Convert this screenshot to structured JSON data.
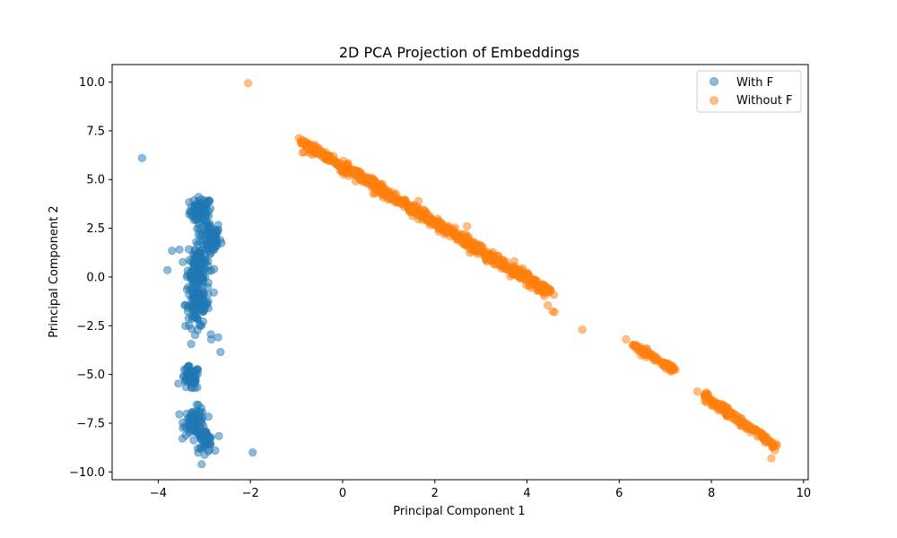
{
  "chart_data": {
    "type": "scatter",
    "title": "2D PCA Projection of Embeddings",
    "xlabel": "Principal Component 1",
    "ylabel": "Principal Component 2",
    "xlim": [
      -5.0,
      10.1
    ],
    "ylim": [
      -10.4,
      10.9
    ],
    "xticks": [
      -4,
      -2,
      0,
      2,
      4,
      6,
      8,
      10
    ],
    "yticks": [
      -10.0,
      -7.5,
      -5.0,
      -2.5,
      0.0,
      2.5,
      5.0,
      7.5,
      10.0
    ],
    "grid": false,
    "legend_position": "top-right",
    "series": [
      {
        "name": "With F",
        "color": "#1f77b4",
        "opacity": 0.5,
        "clusters": [
          {
            "x": -3.08,
            "y": 3.4,
            "sx": 0.12,
            "sy": 0.35,
            "n": 70
          },
          {
            "x": -2.88,
            "y": 2.0,
            "sx": 0.12,
            "sy": 0.45,
            "n": 70
          },
          {
            "x": -3.12,
            "y": 0.6,
            "sx": 0.12,
            "sy": 0.7,
            "n": 120
          },
          {
            "x": -3.15,
            "y": -1.4,
            "sx": 0.13,
            "sy": 0.6,
            "n": 110
          },
          {
            "x": -3.3,
            "y": -5.2,
            "sx": 0.1,
            "sy": 0.3,
            "n": 60
          },
          {
            "x": -3.2,
            "y": -7.4,
            "sx": 0.12,
            "sy": 0.35,
            "n": 70
          },
          {
            "x": -3.0,
            "y": -8.4,
            "sx": 0.1,
            "sy": 0.3,
            "n": 50
          }
        ],
        "outliers": [
          {
            "x": -4.35,
            "y": 6.1
          },
          {
            "x": -3.7,
            "y": 1.35
          },
          {
            "x": -3.8,
            "y": 0.35
          },
          {
            "x": -2.85,
            "y": -3.2
          },
          {
            "x": -2.7,
            "y": -3.1
          },
          {
            "x": -2.65,
            "y": -3.85
          },
          {
            "x": -1.95,
            "y": -9.0
          },
          {
            "x": -3.35,
            "y": -4.6
          }
        ]
      },
      {
        "name": "Without F",
        "color": "#ff7f0e",
        "opacity": 0.5,
        "bands": [
          {
            "x1": -0.9,
            "y1": 6.95,
            "x2": 4.5,
            "y2": -0.8,
            "width": 0.12,
            "n": 700
          },
          {
            "x1": 6.3,
            "y1": -3.5,
            "x2": 7.2,
            "y2": -4.8,
            "width": 0.08,
            "n": 90
          },
          {
            "x1": 7.8,
            "y1": -6.0,
            "x2": 9.4,
            "y2": -8.7,
            "width": 0.09,
            "n": 160
          }
        ],
        "outliers": [
          {
            "x": -2.05,
            "y": 9.95
          },
          {
            "x": 1.65,
            "y": 3.9
          },
          {
            "x": 2.7,
            "y": 2.6
          },
          {
            "x": 4.45,
            "y": -1.45
          },
          {
            "x": 4.55,
            "y": -1.75
          },
          {
            "x": 4.6,
            "y": -1.8
          },
          {
            "x": 5.2,
            "y": -2.7
          },
          {
            "x": 6.15,
            "y": -3.2
          },
          {
            "x": 9.3,
            "y": -9.3
          }
        ]
      }
    ]
  }
}
